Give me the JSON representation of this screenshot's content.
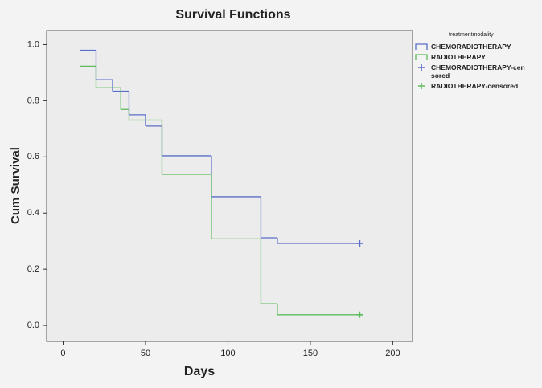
{
  "chart_data": {
    "type": "line",
    "step": "post",
    "title": "Survival Functions",
    "x_label": "Days",
    "y_label": "Cum Survival",
    "xlim": [
      -10,
      212
    ],
    "ylim": [
      -0.057,
      1.05
    ],
    "xticks": [
      0,
      50,
      100,
      150,
      200
    ],
    "yticks": [
      {
        "value": 0,
        "label": "0.0"
      },
      0.2,
      0.4,
      0.6,
      0.8,
      {
        "value": 1,
        "label": "1.0"
      }
    ],
    "legend_title": "treatmentmodality",
    "legend": "right",
    "series": [
      {
        "name": "CHEMORADIOTHERAPY",
        "color": "#5b6ec9",
        "marker": "step",
        "x": [
          10,
          20,
          30,
          40,
          50,
          60,
          90,
          120,
          130,
          180
        ],
        "values": [
          0.98,
          0.875,
          0.834,
          0.75,
          0.71,
          0.604,
          0.458,
          0.312,
          0.292,
          0.292
        ]
      },
      {
        "name": "RADIOTHERAPY",
        "color": "#5dbb5d",
        "marker": "step",
        "x": [
          10,
          20,
          35,
          40,
          60,
          90,
          120,
          130,
          180
        ],
        "values": [
          0.923,
          0.846,
          0.769,
          0.731,
          0.538,
          0.308,
          0.077,
          0.038,
          0.038
        ]
      },
      {
        "name": "CHEMORADIOTHERAPY-censored",
        "color": "#5b6ec9",
        "marker": "plus",
        "x": [
          180
        ],
        "values": [
          0.292
        ]
      },
      {
        "name": "RADIOTHERAPY-censored",
        "color": "#5dbb5d",
        "marker": "plus",
        "x": [
          180
        ],
        "values": [
          0.038
        ]
      }
    ]
  }
}
